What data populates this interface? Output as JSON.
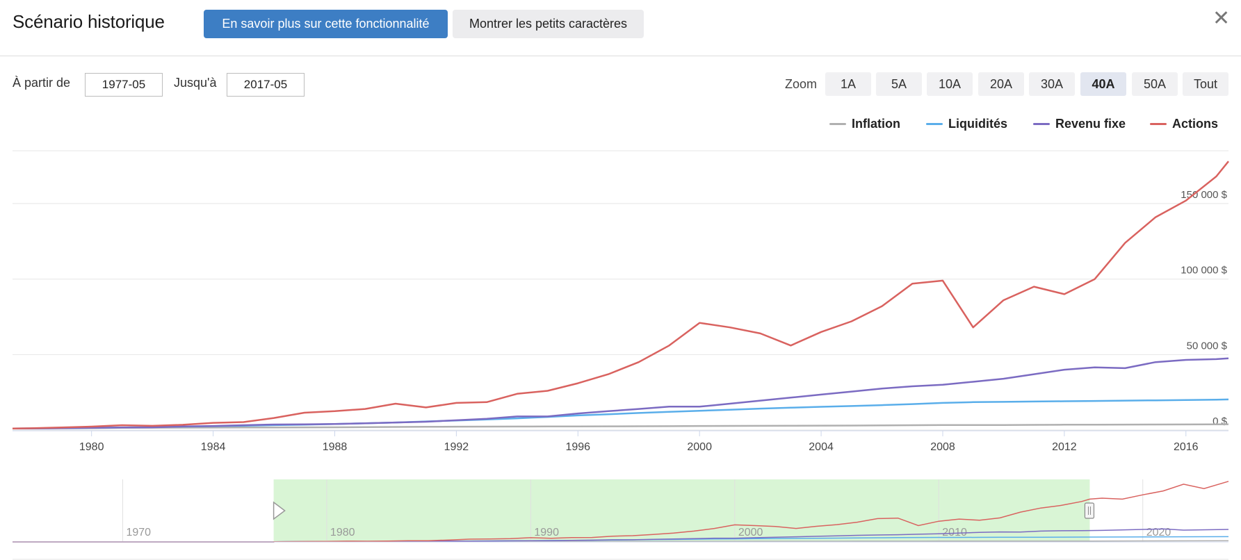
{
  "header": {
    "title": "Scénario historique",
    "learn_more_label": "En savoir plus sur cette fonctionnalité",
    "fine_print_label": "Montrer les petits caractères",
    "close_glyph": "✕"
  },
  "range": {
    "from_label": "À partir de",
    "from_value": "1977-05",
    "to_label": "Jusqu'à",
    "to_value": "2017-05"
  },
  "zoom": {
    "label": "Zoom",
    "options": [
      "1A",
      "5A",
      "10A",
      "20A",
      "30A",
      "40A",
      "50A",
      "Tout"
    ],
    "selected": "40A"
  },
  "colors": {
    "inflation": "#b0b0b0",
    "cash": "#5aaeea",
    "bonds": "#7b6bc2",
    "stocks": "#d9625f",
    "navigator_selection": "#d9f5d5"
  },
  "chart_data": {
    "type": "line",
    "title": "",
    "xlabel": "",
    "ylabel": "",
    "xlim": [
      1977.4,
      2017.4
    ],
    "ylim": [
      0,
      185000
    ],
    "grid": true,
    "legend_position": "top-right",
    "x_ticks": [
      "1980",
      "1984",
      "1988",
      "1992",
      "1996",
      "2000",
      "2004",
      "2008",
      "2012",
      "2016"
    ],
    "y_ticks": [
      {
        "value": 0,
        "label": "0 $"
      },
      {
        "value": 50000,
        "label": "50 000 $"
      },
      {
        "value": 100000,
        "label": "100 000 $"
      },
      {
        "value": 150000,
        "label": "150 000 $"
      }
    ],
    "x": [
      1977.4,
      1978,
      1979,
      1980,
      1981,
      1982,
      1983,
      1984,
      1985,
      1986,
      1987,
      1988,
      1989,
      1990,
      1991,
      1992,
      1993,
      1994,
      1995,
      1996,
      1997,
      1998,
      1999,
      2000,
      2001,
      2002,
      2003,
      2004,
      2005,
      2006,
      2007,
      2008,
      2009,
      2010,
      2011,
      2012,
      2013,
      2014,
      2015,
      2016,
      2017,
      2017.4
    ],
    "series": [
      {
        "name": "Inflation",
        "key": "inflation",
        "values": [
          1000,
          1050,
          1150,
          1300,
          1450,
          1550,
          1600,
          1650,
          1700,
          1750,
          1800,
          1850,
          1950,
          2050,
          2150,
          2250,
          2300,
          2350,
          2400,
          2450,
          2500,
          2550,
          2600,
          2700,
          2750,
          2800,
          2850,
          2950,
          3000,
          3100,
          3200,
          3300,
          3300,
          3350,
          3450,
          3550,
          3600,
          3650,
          3700,
          3750,
          3800,
          3850
        ]
      },
      {
        "name": "Liquidités",
        "key": "cash",
        "values": [
          1000,
          1100,
          1250,
          1450,
          1750,
          2000,
          2300,
          2600,
          2900,
          3250,
          3600,
          4000,
          4500,
          5000,
          5700,
          6300,
          7000,
          7800,
          8700,
          9700,
          10500,
          11300,
          12100,
          12800,
          13500,
          14200,
          14800,
          15400,
          15900,
          16500,
          17200,
          18000,
          18500,
          18700,
          18900,
          19100,
          19300,
          19500,
          19700,
          19900,
          20100,
          20300
        ]
      },
      {
        "name": "Revenu fixe",
        "key": "bonds",
        "values": [
          1000,
          1100,
          1300,
          1500,
          1700,
          1800,
          2400,
          2700,
          3200,
          3700,
          3800,
          4000,
          4500,
          5000,
          5500,
          6500,
          7500,
          9000,
          9000,
          11000,
          12500,
          14000,
          15500,
          15500,
          17500,
          19500,
          21500,
          23500,
          25500,
          27500,
          29000,
          30000,
          32000,
          34000,
          37000,
          40000,
          41500,
          41000,
          45000,
          46500,
          47000,
          47500
        ]
      },
      {
        "name": "Actions",
        "key": "stocks",
        "values": [
          1000,
          1200,
          1700,
          2300,
          3200,
          2800,
          3500,
          4800,
          5300,
          8000,
          11500,
          12500,
          14000,
          17500,
          15000,
          18000,
          18500,
          24000,
          26000,
          31000,
          37000,
          45000,
          56000,
          71000,
          68000,
          64000,
          56000,
          65000,
          72000,
          82000,
          97000,
          99000,
          68000,
          86000,
          95000,
          90000,
          100000,
          124000,
          141000,
          152000,
          168000,
          178000
        ]
      }
    ],
    "navigator": {
      "x_ticks": [
        "1970",
        "1980",
        "1990",
        "2000",
        "2010",
        "2020"
      ],
      "xlim": [
        1964.6,
        2024.2
      ],
      "selection": [
        1977.4,
        2017.4
      ],
      "data_end": 2024.2,
      "stocks_tail": [
        {
          "x": 2018,
          "v": 182000
        },
        {
          "x": 2019,
          "v": 178000
        },
        {
          "x": 2020,
          "v": 196000
        },
        {
          "x": 2021,
          "v": 212000
        },
        {
          "x": 2022,
          "v": 240000
        },
        {
          "x": 2023,
          "v": 222000
        },
        {
          "x": 2024.2,
          "v": 252000
        }
      ],
      "bonds_tail": [
        {
          "x": 2018,
          "v": 48000
        },
        {
          "x": 2020,
          "v": 52000
        },
        {
          "x": 2021,
          "v": 54000
        },
        {
          "x": 2022,
          "v": 49000
        },
        {
          "x": 2024.2,
          "v": 52000
        }
      ],
      "cash_tail": [
        {
          "x": 2024.2,
          "v": 22000
        }
      ],
      "inflation_tail": [
        {
          "x": 2024.2,
          "v": 5000
        }
      ]
    }
  }
}
